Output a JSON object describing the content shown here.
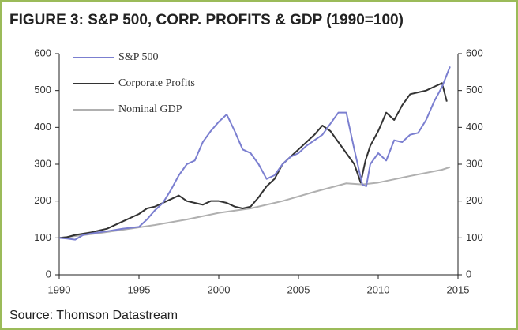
{
  "chart_data": {
    "type": "line",
    "title": "FIGURE 3: S&P 500, CORP. PROFITS & GDP (1990=100)",
    "source": "Source: Thomson Datastream",
    "xlim": [
      1990,
      2015
    ],
    "xticks": [
      1990,
      1995,
      2000,
      2005,
      2010,
      2015
    ],
    "ylim": [
      0,
      600
    ],
    "yticks": [
      0,
      100,
      200,
      300,
      400,
      500,
      600
    ],
    "y2lim": [
      0,
      600
    ],
    "y2ticks": [
      0,
      100,
      200,
      300,
      400,
      500,
      600
    ],
    "legend": "top-left",
    "series": [
      {
        "name": "S&P 500",
        "color": "#7b7fd0",
        "x": [
          1990,
          1990.5,
          1991,
          1991.5,
          1992,
          1993,
          1994,
          1995,
          1995.5,
          1996,
          1996.5,
          1997,
          1997.5,
          1998,
          1998.5,
          1999,
          1999.5,
          2000,
          2000.5,
          2001,
          2001.5,
          2002,
          2002.5,
          2003,
          2003.5,
          2004,
          2004.5,
          2005,
          2005.5,
          2006,
          2006.5,
          2007,
          2007.5,
          2008,
          2008.5,
          2009,
          2009.25,
          2009.5,
          2010,
          2010.5,
          2011,
          2011.5,
          2012,
          2012.5,
          2013,
          2013.5,
          2014,
          2014.5
        ],
        "values": [
          100,
          98,
          95,
          108,
          112,
          118,
          125,
          130,
          150,
          175,
          195,
          230,
          270,
          300,
          310,
          360,
          390,
          415,
          435,
          390,
          340,
          330,
          300,
          260,
          270,
          300,
          320,
          330,
          350,
          365,
          380,
          410,
          440,
          440,
          340,
          245,
          240,
          300,
          330,
          310,
          365,
          360,
          380,
          385,
          420,
          470,
          510,
          565
        ]
      },
      {
        "name": "Corporate Profits",
        "color": "#333333",
        "x": [
          1990,
          1990.5,
          1991,
          1992,
          1993,
          1994,
          1995,
          1995.5,
          1996,
          1996.5,
          1997,
          1997.5,
          1998,
          1998.5,
          1999,
          1999.5,
          2000,
          2000.5,
          2001,
          2001.5,
          2002,
          2002.5,
          2003,
          2003.5,
          2004,
          2004.5,
          2005,
          2005.5,
          2006,
          2006.5,
          2007,
          2007.5,
          2008,
          2008.5,
          2008.9,
          2009.2,
          2009.5,
          2010,
          2010.5,
          2011,
          2011.5,
          2012,
          2012.5,
          2013,
          2013.5,
          2014,
          2014.3
        ],
        "values": [
          100,
          102,
          108,
          115,
          125,
          145,
          165,
          180,
          185,
          195,
          205,
          215,
          200,
          195,
          190,
          200,
          200,
          195,
          185,
          180,
          185,
          210,
          240,
          260,
          300,
          320,
          340,
          360,
          380,
          405,
          390,
          360,
          330,
          300,
          250,
          310,
          350,
          390,
          440,
          420,
          460,
          490,
          495,
          500,
          510,
          520,
          470
        ]
      },
      {
        "name": "Nominal GDP",
        "color": "#b0b0b0",
        "x": [
          1990,
          1992,
          1994,
          1996,
          1998,
          2000,
          2002,
          2004,
          2006,
          2008,
          2009,
          2010,
          2012,
          2014,
          2014.5
        ],
        "values": [
          100,
          110,
          122,
          135,
          150,
          168,
          180,
          200,
          225,
          248,
          245,
          250,
          268,
          285,
          292
        ]
      }
    ]
  }
}
